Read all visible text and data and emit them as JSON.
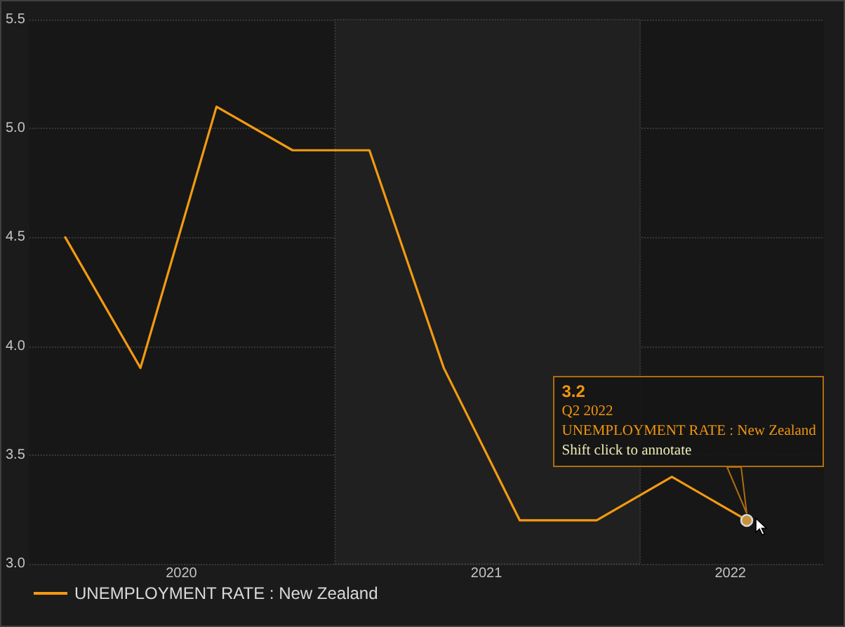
{
  "chart_data": {
    "type": "line",
    "x": [
      "2020-02-13",
      "2020-05-13",
      "2020-08-12",
      "2020-11-11",
      "2021-02-11",
      "2021-05-11",
      "2021-08-10",
      "2021-11-10",
      "2022-02-08",
      "2022-05-09"
    ],
    "series": [
      {
        "name": "UNEMPLOYMENT RATE : New Zealand",
        "color": "#f39a10",
        "values": [
          4.5,
          3.9,
          5.1,
          4.9,
          4.9,
          3.9,
          3.2,
          3.2,
          3.4,
          3.2
        ]
      }
    ],
    "xlim": [
      "2020-01-01",
      "2022-08-09"
    ],
    "xticks": [
      {
        "value": "2020-07-01",
        "label": "2020"
      },
      {
        "value": "2021-07-01",
        "label": "2021"
      },
      {
        "value": "2022-04-19",
        "label": "2022"
      }
    ],
    "ylim": [
      3,
      5.5
    ],
    "yticks": [
      {
        "value": 3,
        "label": "3.0"
      },
      3.5,
      {
        "value": 4,
        "label": "4.0"
      },
      4.5,
      {
        "value": 5,
        "label": "5.0"
      },
      5.5
    ],
    "bands": [
      {
        "axis": "x",
        "from": "2021-01-01",
        "to": "2022-01-01",
        "color": "#202020"
      }
    ],
    "annotations": [
      {
        "text": "3.2\nQ2 2022\nUNEMPLOYMENT RATE : New Zealand\nShift click to annotate",
        "x": "2022-05-09",
        "y": 3.2
      }
    ],
    "grid": "y",
    "legend": "bottom left",
    "marker": "none",
    "line_style": "solid"
  }
}
